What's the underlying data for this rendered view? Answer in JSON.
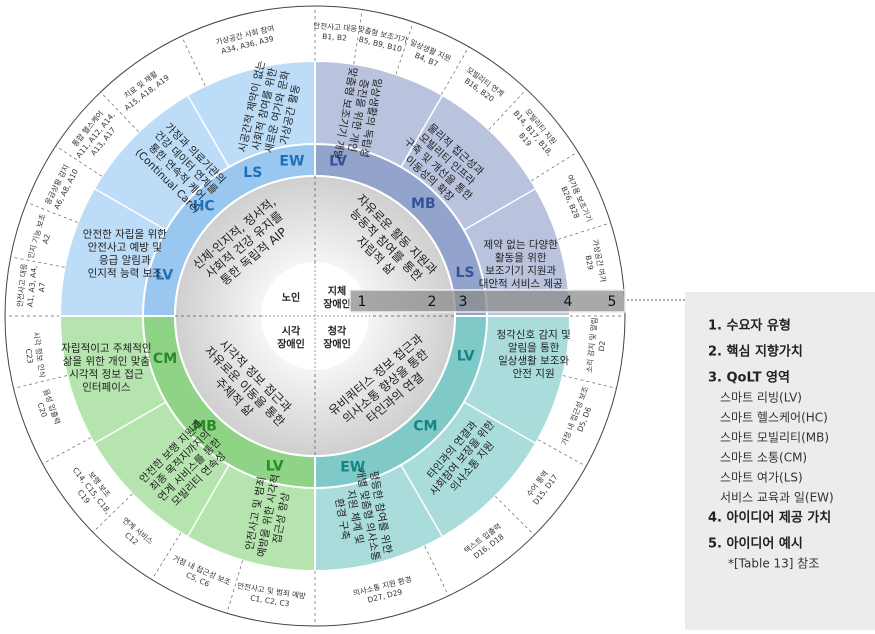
{
  "quadrants": [
    {
      "user_type": [
        "노인"
      ],
      "core_value": [
        "신체·인지적, 정서적,",
        "사회적 건강 유지를",
        "통한 독립적 AIP"
      ],
      "codes": [
        "LV",
        "HC",
        "LS",
        "EW"
      ],
      "ideas": [
        [
          "안전한 자립을 위한",
          "안전사고 예방 및",
          "응급 알림과",
          "인지적 능력 보조"
        ],
        [
          "가정과 의료기관의",
          "건강 데이터 연계를",
          "통한 연속적 케어",
          "(Continual Care)"
        ],
        [
          "시공간적 제약이 없는",
          "사회적 참여를 위한",
          "새로운 여가와 문화",
          "가상공간 활동"
        ]
      ],
      "examples": [
        {
          "name": "가상공간 사회 참여",
          "codes": [
            "A34, A36, A39"
          ]
        },
        {
          "name": "치료 및 재활",
          "codes": [
            "A15, A18, A19"
          ]
        },
        {
          "name": "통합 헬스케어",
          "codes": [
            "A11, A12, A14,",
            "A13, A17"
          ]
        },
        {
          "name": "응급상황 감지",
          "codes": [
            "A6, A8, A10"
          ]
        },
        {
          "name": "인지 기능 보조",
          "codes": [
            "A2"
          ]
        },
        {
          "name": "안전사고 대응",
          "codes": [
            "A1, A3, A4,",
            "A7"
          ]
        }
      ]
    },
    {
      "user_type": [
        "지체",
        "장애인"
      ],
      "core_value": [
        "자유로운 활동 지원과",
        "능동적 참여를 통한",
        "자립적 삶"
      ],
      "codes": [
        "LV",
        "MB",
        "LS"
      ],
      "ideas": [
        [
          "일상생활의 독립성",
          "증진을 위한 개인",
          "맞춤형 보조기기 개발"
        ],
        [
          "물리적 접근성과",
          "모빌리티 인프라",
          "구축 및 개선을 통한",
          "이동성의 확장"
        ],
        [
          "제약 없는 다양한",
          "활동을 위한",
          "보조기기 지원과",
          "대안적 서비스 제공"
        ]
      ],
      "examples": [
        {
          "name": "안전사고 대응",
          "codes": [
            "B1, B2"
          ]
        },
        {
          "name": "맞춤형 보조기기",
          "codes": [
            "B5, B9, B10"
          ]
        },
        {
          "name": "일상생활 지원",
          "codes": [
            "B4, B7"
          ]
        },
        {
          "name": "모빌리티 연계",
          "codes": [
            "B16, B20"
          ]
        },
        {
          "name": "모빌리티 지원",
          "codes": [
            "B14, B17, B18,",
            "B19"
          ]
        },
        {
          "name": "여가용 보조기기",
          "codes": [
            "B26, B28"
          ]
        },
        {
          "name": "가상공간 여가",
          "codes": [
            "B29"
          ]
        }
      ]
    },
    {
      "user_type": [
        "청각",
        "장애인"
      ],
      "core_value": [
        "유비쿼터스 정보 접근과",
        "의사소통 향상을 통한",
        "타인과의 연결"
      ],
      "codes": [
        "LV",
        "CM",
        "EW"
      ],
      "ideas": [
        [
          "청각신호 감지 및",
          "알림을 통한",
          "일상생활 보조와",
          "안전 지원"
        ],
        [
          "타인과의 연결과",
          "사회참여 보장을 위한",
          "의사소통 지원"
        ],
        [
          "평등한 참여를 위한",
          "개별 맞춤형 의사소통",
          "지원 체계 및",
          "환경 구축"
        ]
      ],
      "examples": [
        {
          "name": "소리 감지 및 알림",
          "codes": [
            "D2"
          ]
        },
        {
          "name": "가정 내 접근성 보조",
          "codes": [
            "D5, D6"
          ]
        },
        {
          "name": "수어 통역",
          "codes": [
            "D15, D17"
          ]
        },
        {
          "name": "텍스트 입출력",
          "codes": [
            "D16, D18"
          ]
        },
        {
          "name": "의사소통 지원 환경",
          "codes": [
            "D27, D29"
          ]
        }
      ]
    },
    {
      "user_type": [
        "시각",
        "장애인"
      ],
      "core_value": [
        "시각적 정보 접근과",
        "자유로운 이동을 통한",
        "주체적 삶"
      ],
      "codes": [
        "LV",
        "MB",
        "CM"
      ],
      "ideas": [
        [
          "안전사고 및 범죄",
          "예방을 위한 시각적",
          "접근성 향상"
        ],
        [
          "안전한 보행 지원과",
          "최종 목적지까지의",
          "연계 서비스를 통한",
          "모빌리티 연속성"
        ],
        [
          "자립적이고 주체적인",
          "삶을 위한 개인 맞춤",
          "시각적 정보 접근",
          "인터페이스"
        ]
      ],
      "examples": [
        {
          "name": "안전사고 및 범죄 예방",
          "codes": [
            "C1, C2, C3"
          ]
        },
        {
          "name": "거점 내 접근성 보조",
          "codes": [
            "C5, C6"
          ]
        },
        {
          "name": "연계 서비스",
          "codes": [
            "C12"
          ]
        },
        {
          "name": "보행 보조",
          "codes": [
            "C14, C15, C18,",
            "C19"
          ]
        },
        {
          "name": "음성 입출력",
          "codes": [
            "C20"
          ]
        },
        {
          "name": "시각 정보 인식",
          "codes": [
            "C23"
          ]
        }
      ]
    }
  ],
  "bar_numbers": [
    "1",
    "2",
    "3",
    "4",
    "5"
  ],
  "legend": {
    "items": [
      "1. 수요자 유형",
      "2. 핵심 지향가치",
      "3. QoLT 영역",
      "4. 아이디어 제공 가치",
      "5. 아이디어 예시"
    ],
    "qolt_areas": [
      "스마트 리빙(LV)",
      "스마트 헬스케어(HC)",
      "스마트 모빌리티(MB)",
      "스마트 소통(CM)",
      "스마트 여가(LS)",
      "서비스 교육과 일(EW)"
    ],
    "note": "*[Table 13] 참조"
  }
}
